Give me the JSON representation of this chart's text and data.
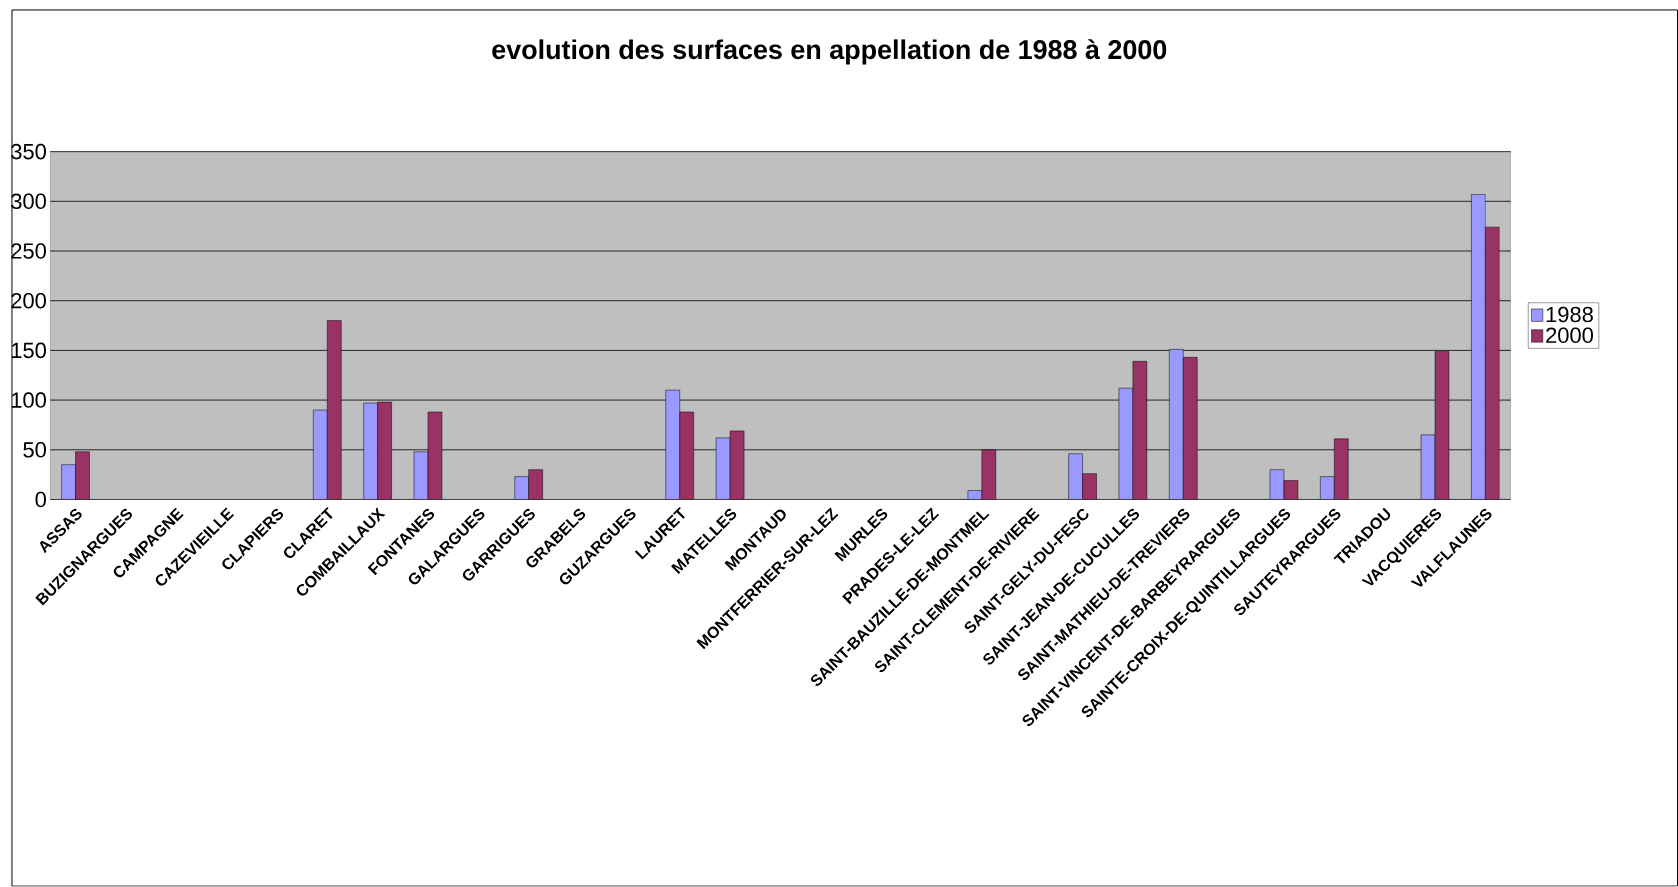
{
  "chart_data": {
    "type": "bar",
    "title": "evolution des surfaces en appellation de 1988 à 2000",
    "categories": [
      "ASSAS",
      "BUZIGNARGUES",
      "CAMPAGNE",
      "CAZEVIEILLE",
      "CLAPIERS",
      "CLARET",
      "COMBAILLAUX",
      "FONTANES",
      "GALARGUES",
      "GARRIGUES",
      "GRABELS",
      "GUZARGUES",
      "LAURET",
      "MATELLES",
      "MONTAUD",
      "MONTFERRIER-SUR-LEZ",
      "MURLES",
      "PRADES-LE-LEZ",
      "SAINT-BAUZILLE-DE-MONTMEL",
      "SAINT-CLEMENT-DE-RIVIERE",
      "SAINT-GELY-DU-FESC",
      "SAINT-JEAN-DE-CUCULLES",
      "SAINT-MATHIEU-DE-TREVIERS",
      "SAINT-VINCENT-DE-BARBEYRARGUES",
      "SAINTE-CROIX-DE-QUINTILLARGUES",
      "SAUTEYRARGUES",
      "TRIADOU",
      "VACQUIERES",
      "VALFLAUNES"
    ],
    "series": [
      {
        "name": "1988",
        "color": "#9999ff",
        "values": [
          35,
          null,
          null,
          null,
          null,
          90,
          97,
          48,
          null,
          23,
          null,
          null,
          110,
          62,
          null,
          null,
          null,
          null,
          9,
          null,
          46,
          112,
          151,
          null,
          30,
          23,
          null,
          65,
          307
        ]
      },
      {
        "name": "2000",
        "color": "#993366",
        "values": [
          48,
          null,
          null,
          null,
          null,
          180,
          98,
          88,
          null,
          30,
          null,
          null,
          88,
          69,
          null,
          null,
          null,
          null,
          50,
          null,
          26,
          139,
          143,
          null,
          19,
          61,
          null,
          149,
          274
        ]
      }
    ],
    "ylim": [
      0,
      350
    ],
    "yticks": [
      0,
      50,
      100,
      150,
      200,
      250,
      300,
      350
    ],
    "grid": "y",
    "legend": "right"
  }
}
